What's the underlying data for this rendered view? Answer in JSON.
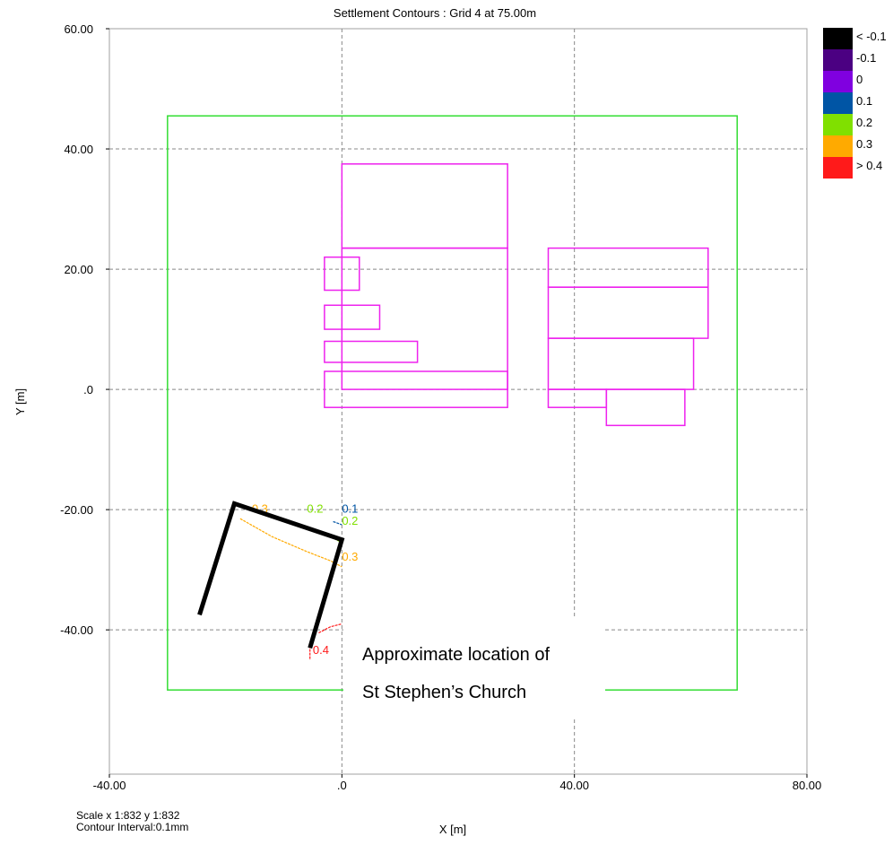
{
  "chart_data": {
    "type": "contour",
    "title": "Settlement Contours : Grid 4 at 75.00m",
    "xlabel": "X [m]",
    "ylabel": "Y [m]",
    "xlim": [
      -40,
      80
    ],
    "ylim": [
      -64,
      60
    ],
    "xticks": [
      {
        "value": -40,
        "label": "-40.00"
      },
      {
        "value": 0,
        "label": ".0"
      },
      {
        "value": 40,
        "label": "40.00"
      },
      {
        "value": 80,
        "label": "80.00"
      }
    ],
    "yticks": [
      {
        "value": 60,
        "label": "60.00"
      },
      {
        "value": 40,
        "label": "40.00"
      },
      {
        "value": 20,
        "label": "20.00"
      },
      {
        "value": 0,
        "label": ".0"
      },
      {
        "value": -20,
        "label": "-20.00"
      },
      {
        "value": -40,
        "label": "-40.00"
      }
    ],
    "grid": true,
    "legend_position": "top-right",
    "legend": [
      {
        "label": "< -0.1",
        "color": "#000000"
      },
      {
        "label": "-0.1",
        "color": "#4b0082"
      },
      {
        "label": "0",
        "color": "#8000e0"
      },
      {
        "label": "0.1",
        "color": "#0055a5"
      },
      {
        "label": "0.2",
        "color": "#80e000"
      },
      {
        "label": "0.3",
        "color": "#ffaa00"
      },
      {
        "label": "> 0.4",
        "color": "#ff1a1a"
      }
    ],
    "grid_boundary": {
      "color": "#33dd33",
      "x0": -30,
      "y0": -50,
      "x1": 68,
      "y1": 45.5
    },
    "buildings_color": "#ee22ee",
    "buildings": [
      {
        "x0": 0,
        "y0": 23.5,
        "x1": 28.5,
        "y1": 37.5
      },
      {
        "x0": 0,
        "y0": 0,
        "x1": 28.5,
        "y1": 23.5
      },
      {
        "x0": -3,
        "y0": 16.5,
        "x1": 3,
        "y1": 22
      },
      {
        "x0": -3,
        "y0": 10,
        "x1": 6.5,
        "y1": 14
      },
      {
        "x0": -3,
        "y0": 4.5,
        "x1": 13,
        "y1": 8
      },
      {
        "x0": -3,
        "y0": -3,
        "x1": 28.5,
        "y1": 3
      },
      {
        "x0": 35.5,
        "y0": 17,
        "x1": 63,
        "y1": 23.5
      },
      {
        "x0": 35.5,
        "y0": 8.5,
        "x1": 63,
        "y1": 17
      },
      {
        "x0": 35.5,
        "y0": 0,
        "x1": 60.5,
        "y1": 8.5
      },
      {
        "x0": 35.5,
        "y0": -3,
        "x1": 45.5,
        "y1": 0
      },
      {
        "x0": 45.5,
        "y0": -6,
        "x1": 59,
        "y1": 0
      }
    ],
    "contours": [
      {
        "level": "0.3",
        "color": "#ffaa00",
        "points": [
          [
            -17.5,
            -21.5
          ],
          [
            -12,
            -24.5
          ],
          [
            -6,
            -27
          ],
          [
            -2,
            -28.5
          ],
          [
            0,
            -29.5
          ]
        ]
      },
      {
        "level": "0.2",
        "color": "#80e000",
        "points": [
          [
            -3,
            -24
          ],
          [
            -1,
            -25
          ],
          [
            0,
            -25.5
          ]
        ]
      },
      {
        "level": "0.1",
        "color": "#0055a5",
        "points": [
          [
            -1.5,
            -22
          ],
          [
            0,
            -22.5
          ]
        ]
      },
      {
        "level": "0.4",
        "color": "#ff1a1a",
        "points": [
          [
            -4,
            -40.5
          ],
          [
            -2,
            -39.5
          ],
          [
            0,
            -39
          ]
        ]
      },
      {
        "level": "0.4",
        "color": "#ff1a1a",
        "points": [
          [
            -5.5,
            -42
          ],
          [
            -5.5,
            -45
          ]
        ]
      }
    ],
    "contour_labels": [
      {
        "text": "0.3",
        "color": "#ffaa00",
        "x": -15.5,
        "y": -20.5
      },
      {
        "text": "0.2",
        "color": "#80e000",
        "x": -6,
        "y": -20.5
      },
      {
        "text": "0.1",
        "color": "#0055a5",
        "x": 0,
        "y": -20.5
      },
      {
        "text": "0.2",
        "color": "#80e000",
        "x": 0,
        "y": -22.5
      },
      {
        "text": "0.3",
        "color": "#ffaa00",
        "x": 0,
        "y": -28.5
      },
      {
        "text": "0.4",
        "color": "#ff1a1a",
        "x": -5,
        "y": -44
      }
    ],
    "church_outline": {
      "color": "#000000",
      "points": [
        [
          -24.5,
          -37.5
        ],
        [
          -18.5,
          -19
        ],
        [
          0,
          -25
        ],
        [
          -5.5,
          -43
        ]
      ]
    },
    "annotation": {
      "lines": [
        "Approximate location of",
        "St Stephen’s Church"
      ]
    },
    "footer": {
      "scale": "Scale x 1:832  y 1:832",
      "contour_interval": "Contour Interval:0.1mm"
    }
  }
}
